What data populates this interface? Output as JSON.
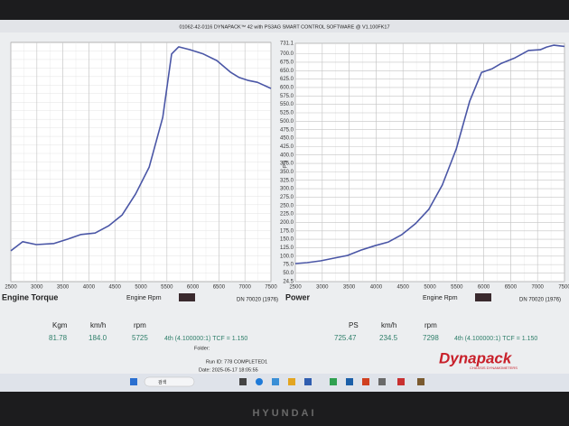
{
  "window_title": "01062-42-0116 DYNAPACK™ 42 with PS3AG SMART CONTROL SOFTWARE @ V1.100FK17",
  "chart_data": [
    {
      "type": "line",
      "title": "Engine Torque",
      "x_label": "Engine Rpm",
      "note": "DN 70020 (1976)",
      "color": "#4a56a6",
      "x": [
        2500,
        2730,
        2990,
        3330,
        3590,
        3850,
        4120,
        4380,
        4640,
        4900,
        5160,
        5420,
        5590,
        5725,
        5940,
        6200,
        6460,
        6720,
        6890,
        7070,
        7240,
        7500
      ],
      "values": [
        25.5,
        28.0,
        27.2,
        27.5,
        28.7,
        30.0,
        30.4,
        32.4,
        35.4,
        41.2,
        48.6,
        62.3,
        79.8,
        81.78,
        81.0,
        79.8,
        78.0,
        74.8,
        73.3,
        72.5,
        72.0,
        70.3
      ],
      "xlim": [
        2500,
        7500
      ],
      "xticks": [
        2500,
        3000,
        3500,
        4000,
        4500,
        5000,
        5500,
        6000,
        6500,
        7000,
        7500
      ],
      "ylim": [
        17,
        83
      ],
      "grid": true
    },
    {
      "type": "line",
      "title": "Power",
      "x_label": "Engine Rpm",
      "y_label": "PS",
      "note": "DN 70020 (1976)",
      "color": "#4a56a6",
      "x": [
        2500,
        2720,
        2970,
        3220,
        3470,
        3720,
        3980,
        4230,
        4480,
        4730,
        4980,
        5230,
        5490,
        5740,
        5960,
        6160,
        6330,
        6580,
        6830,
        7050,
        7170,
        7298,
        7500
      ],
      "values": [
        78,
        80.7,
        86,
        94,
        102,
        118,
        131,
        142,
        164,
        196,
        239,
        311,
        418,
        560,
        645,
        656,
        672,
        688,
        710,
        712,
        720,
        725.47,
        722
      ],
      "xlim": [
        2500,
        7500
      ],
      "xticks": [
        2500,
        3000,
        3500,
        4000,
        4500,
        5000,
        5500,
        6000,
        6500,
        7000,
        7500
      ],
      "ylim": [
        24.5,
        731.1
      ],
      "yticks": [
        24.5,
        {
          "value": 50,
          "label": "50.0"
        },
        {
          "value": 75,
          "label": "75.0"
        },
        {
          "value": 100,
          "label": "100.0"
        },
        {
          "value": 125,
          "label": "125.0"
        },
        {
          "value": 150,
          "label": "150.0"
        },
        {
          "value": 175,
          "label": "175.0"
        },
        {
          "value": 200,
          "label": "200.0"
        },
        {
          "value": 225,
          "label": "225.0"
        },
        {
          "value": 250,
          "label": "250.0"
        },
        {
          "value": 275,
          "label": "275.0"
        },
        {
          "value": 300,
          "label": "300.0"
        },
        {
          "value": 325,
          "label": "325.0"
        },
        {
          "value": 350,
          "label": "350.0"
        },
        {
          "value": 375,
          "label": "375.0"
        },
        {
          "value": 400,
          "label": "400.0"
        },
        {
          "value": 425,
          "label": "425.0"
        },
        {
          "value": 450,
          "label": "450.0"
        },
        {
          "value": 475,
          "label": "475.0"
        },
        {
          "value": 500,
          "label": "500.0"
        },
        {
          "value": 525,
          "label": "525.0"
        },
        {
          "value": 550,
          "label": "550.0"
        },
        {
          "value": 575,
          "label": "575.0"
        },
        {
          "value": 600,
          "label": "600.0"
        },
        {
          "value": 625,
          "label": "625.0"
        },
        {
          "value": 650,
          "label": "650.0"
        },
        {
          "value": 675,
          "label": "675.0"
        },
        {
          "value": 700,
          "label": "700.0"
        },
        731.1
      ],
      "grid": true
    }
  ],
  "readouts": [
    {
      "labels": [
        "Kgm",
        "km/h",
        "rpm"
      ],
      "values": [
        "81.78",
        "184.0",
        "5725"
      ],
      "gear": "4th (4.100000:1) TCF = 1.150"
    },
    {
      "labels": [
        "PS",
        "km/h",
        "rpm"
      ],
      "values": [
        "725.47",
        "234.5",
        "7298"
      ],
      "gear": "4th (4.100000:1) TCF = 1.150"
    }
  ],
  "footer": {
    "folder": "Folder:",
    "run_id": "Run ID: 778 COMPLETED1",
    "date": "Date: 2025-05-17 18:05:55"
  },
  "logo": {
    "name": "Dynapack",
    "tagline": "CHASSIS DYNAMOMETERS"
  },
  "taskbar": {
    "search": "검색"
  },
  "bezel_brand": "HYUNDAI"
}
